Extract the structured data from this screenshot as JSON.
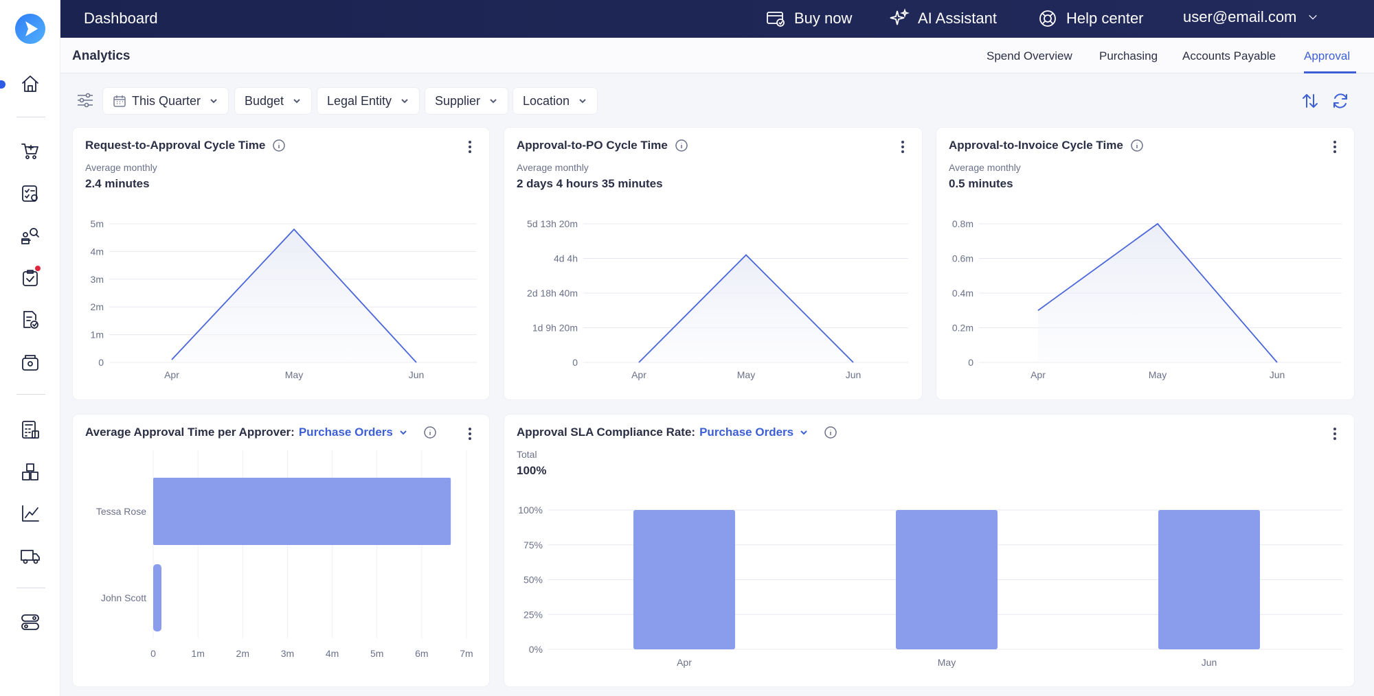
{
  "topbar": {
    "title": "Dashboard",
    "buy_now": "Buy now",
    "ai_assistant": "AI Assistant",
    "help_center": "Help center",
    "user_email": "user@email.com"
  },
  "subheader": {
    "title": "Analytics",
    "tabs": [
      {
        "label": "Spend Overview"
      },
      {
        "label": "Purchasing"
      },
      {
        "label": "Accounts Payable"
      },
      {
        "label": "Approval",
        "active": true
      }
    ]
  },
  "filters": {
    "items": [
      {
        "label": "This Quarter"
      },
      {
        "label": "Budget"
      },
      {
        "label": "Legal Entity"
      },
      {
        "label": "Supplier"
      },
      {
        "label": "Location"
      }
    ]
  },
  "sidebar": {
    "icons": [
      "home-icon",
      "cart-icon",
      "checklist-icon",
      "people-search-icon",
      "clipboard-check-icon",
      "invoice-check-icon",
      "wallet-icon",
      "calculator-icon",
      "boxes-icon",
      "chart-line-icon",
      "truck-icon",
      "toggle-icon"
    ]
  },
  "cards": {
    "c1": {
      "title": "Request-to-Approval Cycle Time",
      "sub": "Average monthly",
      "value": "2.4 minutes"
    },
    "c2": {
      "title": "Approval-to-PO Cycle Time",
      "sub": "Average monthly",
      "value": "2 days 4 hours 35 minutes"
    },
    "c3": {
      "title": "Approval-to-Invoice Cycle Time",
      "sub": "Average monthly",
      "value": "0.5 minutes"
    },
    "c4": {
      "title": "Average Approval Time per Approver:",
      "link": "Purchase Orders"
    },
    "c5": {
      "title": "Approval SLA Compliance Rate:",
      "link": "Purchase Orders",
      "sub": "Total",
      "value": "100%"
    }
  },
  "colors": {
    "accent": "#3d5fd6",
    "bar": "#8a9ded",
    "line": "#4a66d8"
  },
  "chart_data": [
    {
      "type": "line",
      "title": "Request-to-Approval Cycle Time",
      "x": [
        "Apr",
        "May",
        "Jun"
      ],
      "values": [
        0.1,
        4.8,
        0
      ],
      "yticks": [
        "0",
        "1m",
        "2m",
        "3m",
        "4m",
        "5m"
      ],
      "ylim": [
        0,
        5
      ]
    },
    {
      "type": "line",
      "title": "Approval-to-PO Cycle Time",
      "x": [
        "Apr",
        "May",
        "Jun"
      ],
      "values": [
        0,
        3.1,
        0
      ],
      "yticks": [
        "0",
        "1d 9h 20m",
        "2d 18h 40m",
        "4d 4h",
        "5d 13h 20m"
      ],
      "ylim": [
        0,
        4
      ]
    },
    {
      "type": "line",
      "title": "Approval-to-Invoice Cycle Time",
      "x": [
        "Apr",
        "May",
        "Jun"
      ],
      "values": [
        0.3,
        0.8,
        0
      ],
      "yticks": [
        "0",
        "0.2m",
        "0.4m",
        "0.6m",
        "0.8m"
      ],
      "ylim": [
        0,
        0.8
      ]
    },
    {
      "type": "bar",
      "orientation": "horizontal",
      "title": "Average Approval Time per Approver: Purchase Orders",
      "categories": [
        "Tessa Rose",
        "John Scott"
      ],
      "values": [
        6.65,
        0.12
      ],
      "xticks": [
        "0",
        "1m",
        "2m",
        "3m",
        "4m",
        "5m",
        "6m",
        "7m"
      ],
      "xlim": [
        0,
        7
      ]
    },
    {
      "type": "bar",
      "title": "Approval SLA Compliance Rate: Purchase Orders",
      "categories": [
        "Apr",
        "May",
        "Jun"
      ],
      "values": [
        100,
        100,
        100
      ],
      "yticks": [
        "0%",
        "25%",
        "50%",
        "75%",
        "100%"
      ],
      "ylim": [
        0,
        100
      ]
    }
  ]
}
